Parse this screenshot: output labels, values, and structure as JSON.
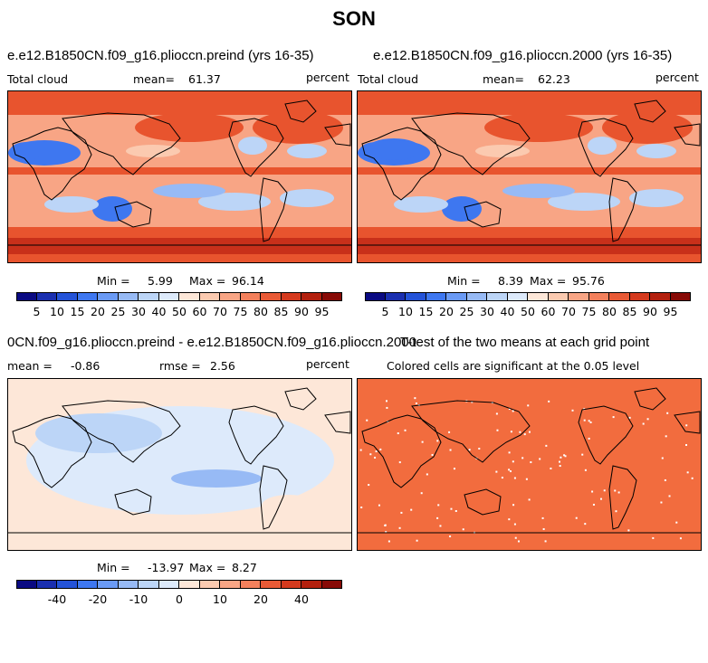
{
  "season_title": "SON",
  "panels": {
    "p1": {
      "title": "e.e12.B1850CN.f09_g16.plioccn.preind (yrs 16-35)",
      "left_label": "Total cloud",
      "mean_label": "mean=",
      "mean_value": "61.37",
      "units": "percent",
      "min_label": "Min =",
      "min_value": "5.99",
      "max_label": "Max =",
      "max_value": "96.14"
    },
    "p2": {
      "title": "e.e12.B1850CN.f09_g16.plioccn.2000 (yrs 16-35)",
      "left_label": "Total cloud",
      "mean_label": "mean=",
      "mean_value": "62.23",
      "units": "percent",
      "min_label": "Min =",
      "min_value": "8.39",
      "max_label": "Max =",
      "max_value": "95.76"
    },
    "p3": {
      "title": "0CN.f09_g16.plioccn.preind - e.e12.B1850CN.f09_g16.plioccn.2000",
      "mean_label": "mean =",
      "mean_value": "-0.86",
      "rmse_label": "rmse =",
      "rmse_value": "2.56",
      "units": "percent",
      "min_label": "Min =",
      "min_value": "-13.97",
      "max_label": "Max =",
      "max_value": "8.27"
    },
    "p4": {
      "title": "T-test of the two means at each grid point",
      "subtitle": "Colored cells are significant at the 0.05 level"
    }
  },
  "colorbars": {
    "abs": {
      "colors": [
        "#0a0a82",
        "#1a2fb0",
        "#2453d8",
        "#3e77f0",
        "#6a9af5",
        "#97baf5",
        "#bcd5f7",
        "#ddeafb",
        "#fde7d8",
        "#fbcab0",
        "#f8a585",
        "#f3805c",
        "#e85a36",
        "#d53a1e",
        "#b3200e",
        "#870a06"
      ],
      "labels": [
        "5",
        "10",
        "15",
        "20",
        "25",
        "30",
        "40",
        "50",
        "60",
        "70",
        "75",
        "80",
        "85",
        "90",
        "95"
      ]
    },
    "diff": {
      "colors": [
        "#0a0a82",
        "#1a2fb0",
        "#2453d8",
        "#3e77f0",
        "#6a9af5",
        "#97baf5",
        "#bcd5f7",
        "#ddeafb",
        "#fde7d8",
        "#fbcab0",
        "#f8a585",
        "#f3805c",
        "#e85a36",
        "#d53a1e",
        "#b3200e",
        "#870a06"
      ],
      "labels": [
        "-40",
        "-20",
        "-10",
        "0",
        "10",
        "20",
        "40"
      ]
    }
  },
  "map_colors": {
    "high": "#e8542e",
    "veryhigh": "#c8301a",
    "mid": "#f8a585",
    "lowmid": "#fbcab0",
    "neutral": "#fde7d8",
    "low": "#bcd5f7",
    "lower": "#97baf5",
    "lowest": "#3e77f0",
    "diff_neg": "#ddeafb",
    "diff_pos": "#fde7d8",
    "sig": "#f26c3e"
  }
}
